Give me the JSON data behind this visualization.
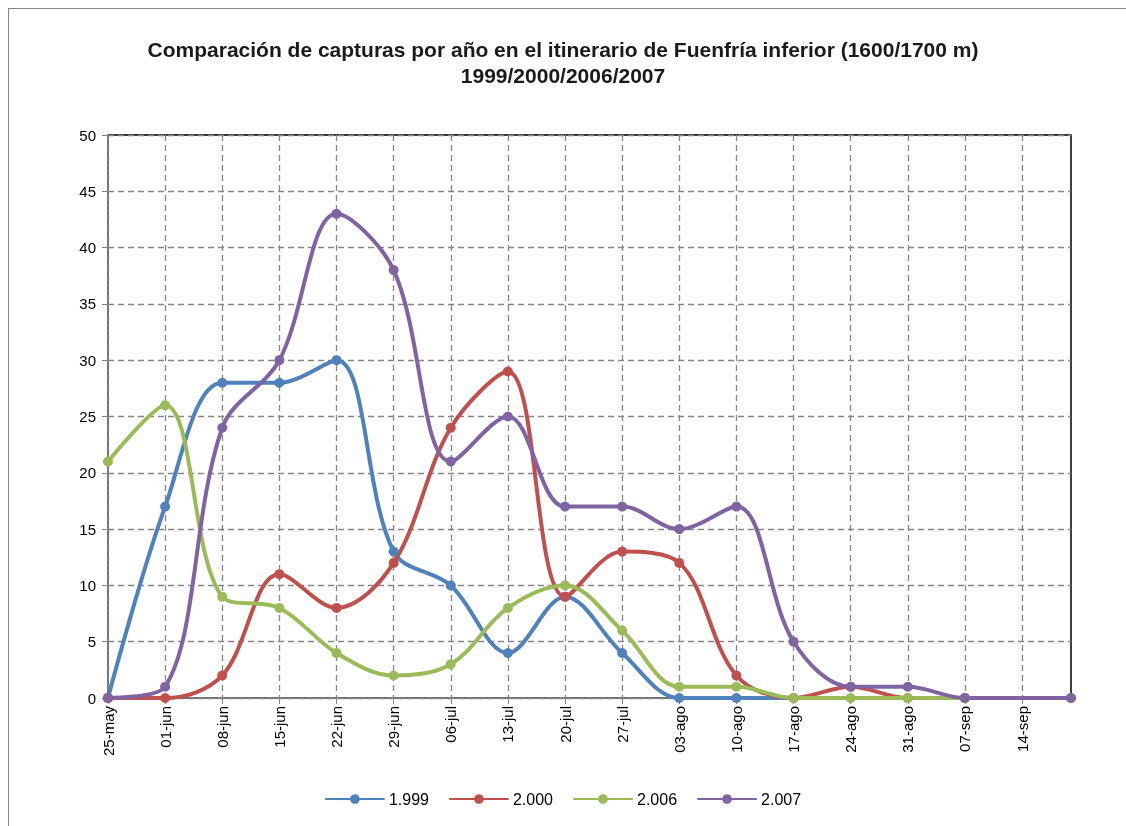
{
  "chart_data": {
    "type": "line",
    "title": "Comparación de capturas por año en el itinerario de Fuenfría inferior (1600/1700 m)",
    "subtitle": "1999/2000/2006/2007",
    "x": [
      "--05-25",
      "--06-01",
      "--06-08",
      "--06-15",
      "--06-22",
      "--06-29",
      "--07-06",
      "--07-13",
      "--07-20",
      "--07-27",
      "--08-03",
      "--08-10",
      "--08-17",
      "--08-24",
      "--08-31",
      "--09-07",
      "--09-20"
    ],
    "xlim": [
      "--05-25",
      "--09-20"
    ],
    "xticks": [
      {
        "value": "--05-25",
        "label": "25-may"
      },
      {
        "value": "--06-01",
        "label": "01-jun"
      },
      {
        "value": "--06-08",
        "label": "08-jun"
      },
      {
        "value": "--06-15",
        "label": "15-jun"
      },
      {
        "value": "--06-22",
        "label": "22-jun"
      },
      {
        "value": "--06-29",
        "label": "29-jun"
      },
      {
        "value": "--07-06",
        "label": "06-jul"
      },
      {
        "value": "--07-13",
        "label": "13-jul"
      },
      {
        "value": "--07-20",
        "label": "20-jul"
      },
      {
        "value": "--07-27",
        "label": "27-jul"
      },
      {
        "value": "--08-03",
        "label": "03-ago"
      },
      {
        "value": "--08-10",
        "label": "10-ago"
      },
      {
        "value": "--08-17",
        "label": "17-ago"
      },
      {
        "value": "--08-24",
        "label": "24-ago"
      },
      {
        "value": "--08-31",
        "label": "31-ago"
      },
      {
        "value": "--09-07",
        "label": "07-sep"
      },
      {
        "value": "--09-14",
        "label": "14-sep"
      }
    ],
    "ylim": [
      0,
      50
    ],
    "yticks": [
      0,
      5,
      10,
      15,
      20,
      25,
      30,
      35,
      40,
      45,
      50
    ],
    "grid": true,
    "legend": "bottom",
    "marker": "circle",
    "line_style": "solid",
    "series": [
      {
        "name": "1.999",
        "color": "#4f81bd",
        "values": [
          0,
          17,
          28,
          28,
          30,
          13,
          10,
          4,
          9,
          4,
          0,
          0,
          0,
          null,
          null,
          null,
          null
        ]
      },
      {
        "name": "2.000",
        "color": "#c0504d",
        "values": [
          0,
          0,
          2,
          11,
          8,
          12,
          24,
          29,
          9,
          13,
          12,
          2,
          0,
          1,
          0,
          0,
          null
        ]
      },
      {
        "name": "2.006",
        "color": "#9bbb59",
        "values": [
          21,
          26,
          9,
          8,
          4,
          2,
          3,
          8,
          10,
          6,
          1,
          1,
          0,
          0,
          0,
          0,
          0
        ]
      },
      {
        "name": "2.007",
        "color": "#8064a2",
        "values": [
          0,
          1,
          24,
          30,
          43,
          38,
          21,
          25,
          17,
          17,
          15,
          17,
          5,
          1,
          1,
          0,
          0
        ]
      }
    ]
  }
}
